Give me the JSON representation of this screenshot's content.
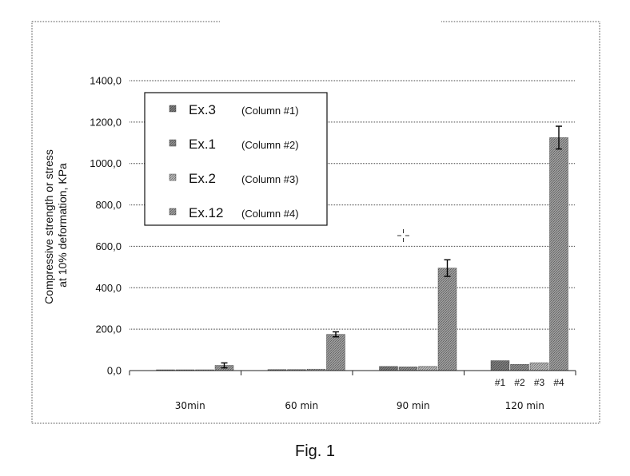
{
  "chart_data": {
    "type": "bar",
    "title": "",
    "xlabel": "",
    "ylabel_lines": [
      "Compressive strength or stress",
      "at 10% deformation, KPa"
    ],
    "ylim": [
      0,
      1400
    ],
    "yticks": [
      0,
      200,
      400,
      600,
      800,
      1000,
      1200,
      1400
    ],
    "ytick_labels": [
      "0,0",
      "200,0",
      "400,0",
      "600,0",
      "800,0",
      "1000,0",
      "1200,0",
      "1400,0"
    ],
    "grid": true,
    "legend_position": "top-left",
    "categories": [
      "30min",
      "60 min",
      "90 min",
      "120 min"
    ],
    "sublabels": [
      "#1",
      "#2",
      "#3",
      "#4"
    ],
    "series": [
      {
        "name": "Ex.3",
        "column_label": "(Column #1)",
        "color": "#7a7a7a",
        "values": [
          3,
          5,
          20,
          48
        ],
        "errors": [
          0,
          0,
          0,
          0
        ]
      },
      {
        "name": "Ex.1",
        "column_label": "(Column #2)",
        "color": "#8c8c8c",
        "values": [
          2,
          5,
          18,
          30
        ],
        "errors": [
          0,
          0,
          0,
          0
        ]
      },
      {
        "name": "Ex.2",
        "column_label": "(Column #3)",
        "color": "#b4b4b4",
        "values": [
          3,
          7,
          20,
          38
        ],
        "errors": [
          0,
          0,
          0,
          0
        ]
      },
      {
        "name": "Ex.12",
        "column_label": "(Column #4)",
        "color": "#9a9a9a",
        "values": [
          25,
          175,
          495,
          1125
        ],
        "errors": [
          12,
          12,
          40,
          55
        ]
      }
    ]
  },
  "figure": {
    "caption": "Fig. 1"
  }
}
